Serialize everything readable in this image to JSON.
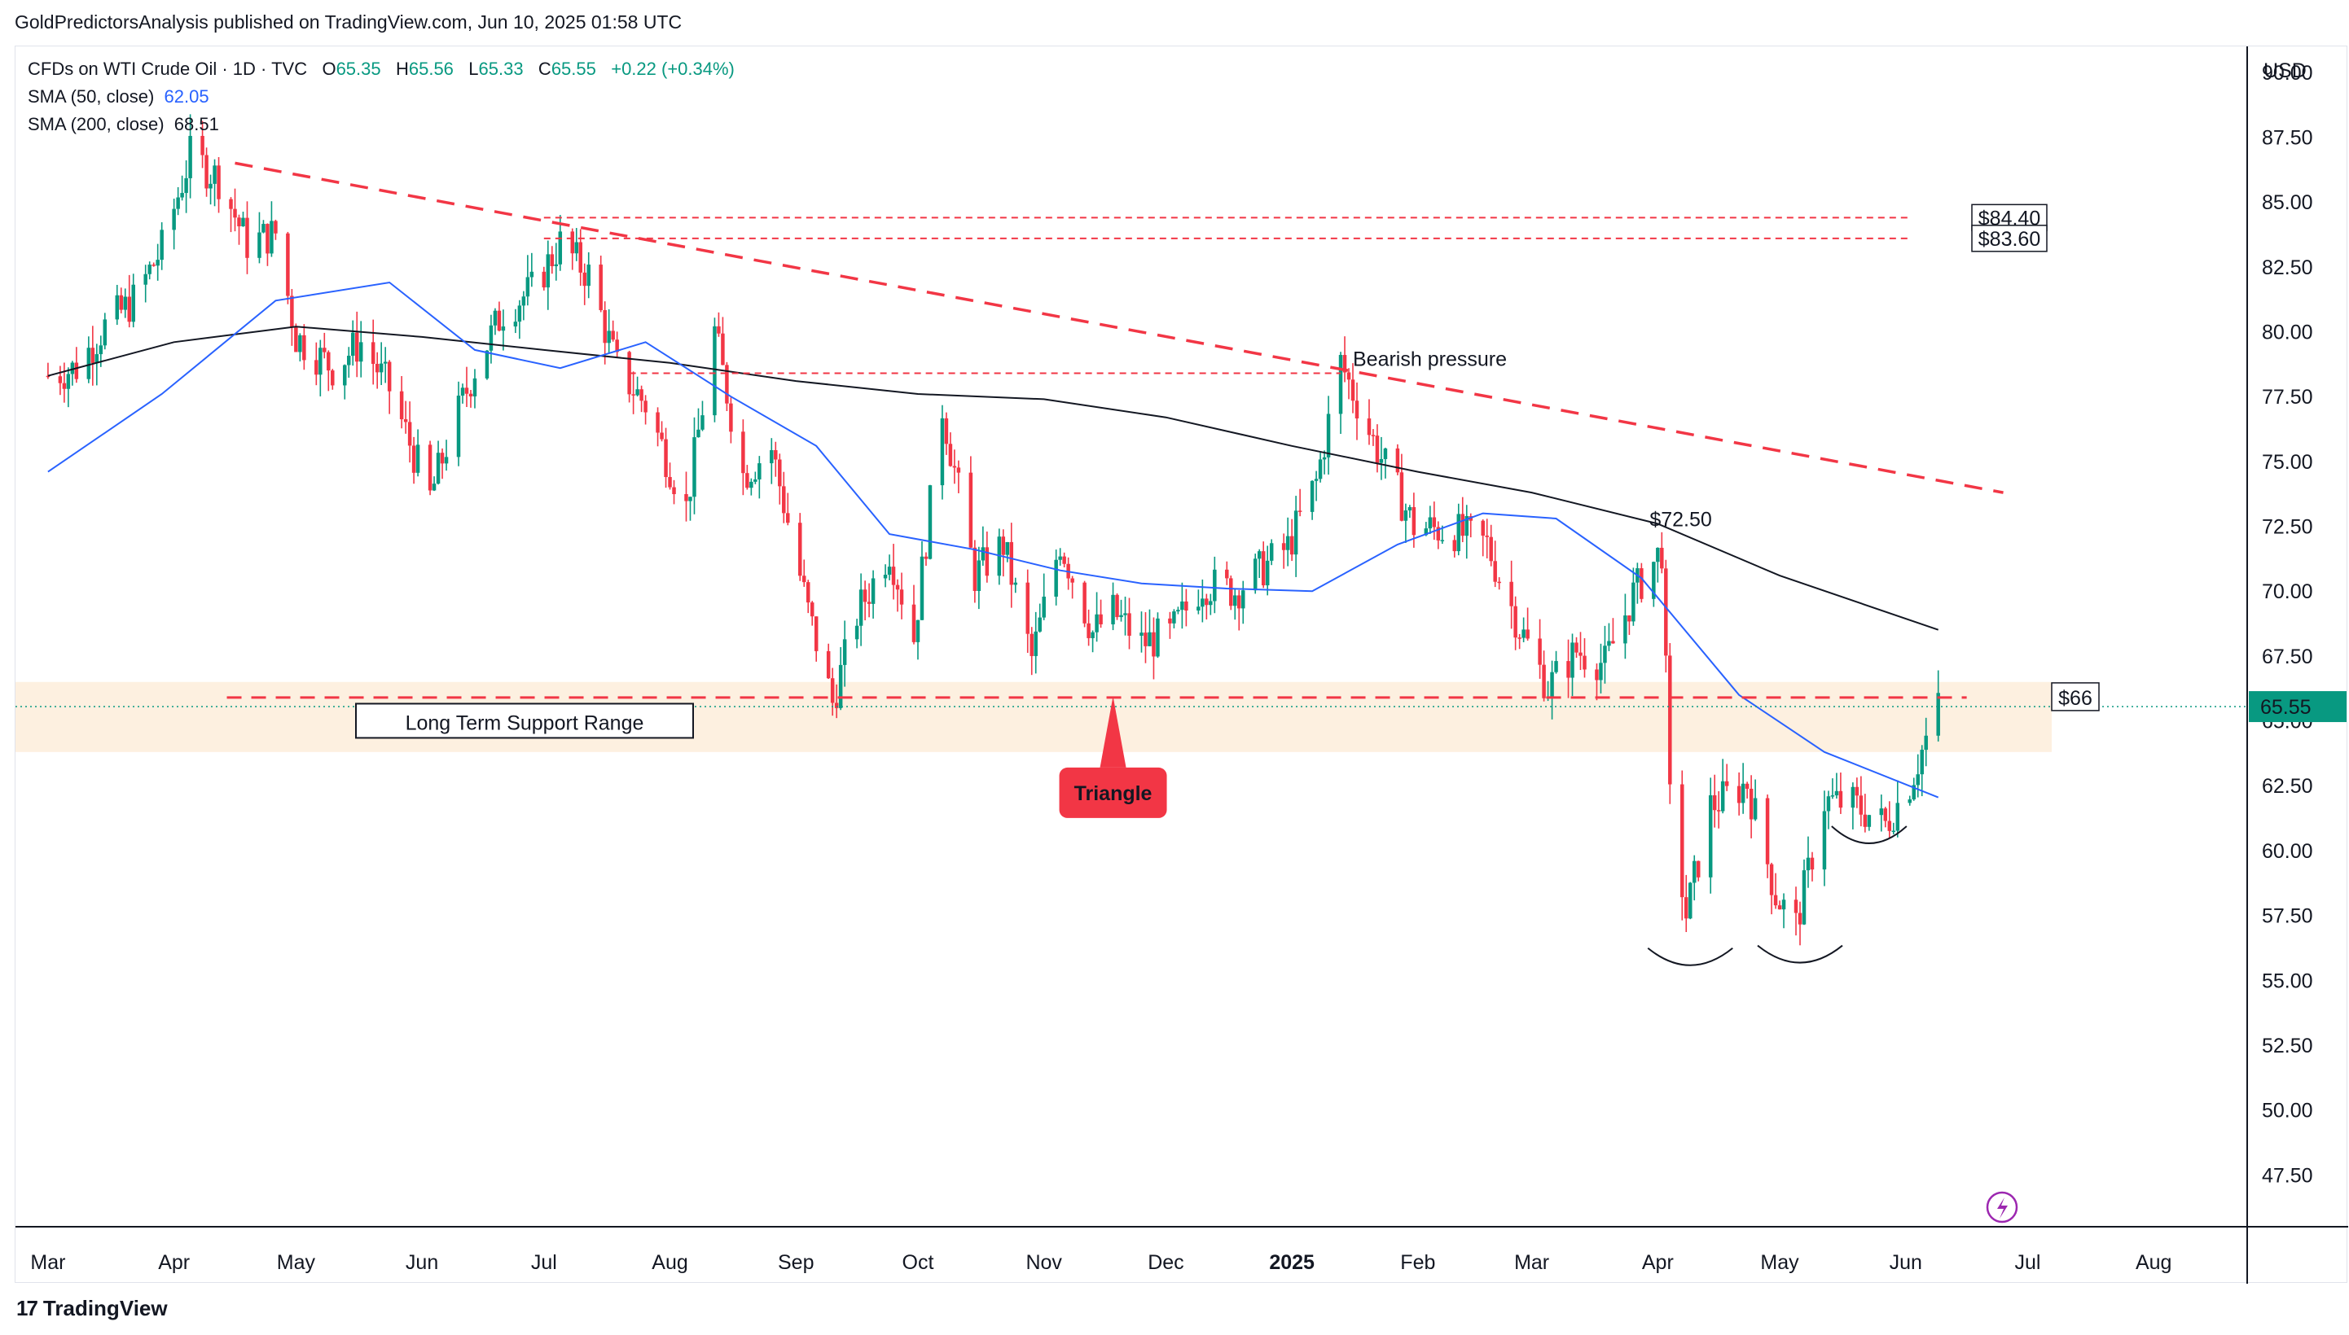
{
  "header": {
    "publisher": "GoldPredictorsAnalysis published on TradingView.com, Jun 10, 2025 01:58 UTC"
  },
  "legend": {
    "symbol": "CFDs on WTI Crude Oil · 1D · TVC",
    "ohlc": {
      "o_label": "O",
      "o": "65.35",
      "h_label": "H",
      "h": "65.56",
      "l_label": "L",
      "l": "65.33",
      "c_label": "C",
      "c": "65.55",
      "change": "+0.22 (+0.34%)"
    },
    "sma50": {
      "label": "SMA (50, close)",
      "value": "62.05"
    },
    "sma200": {
      "label": "SMA (200, close)",
      "value": "68.51"
    }
  },
  "currency": "USD",
  "footer": {
    "brand": "TradingView",
    "logo": "17"
  },
  "colors": {
    "up": "#089981",
    "down": "#f23645",
    "sma50": "#2962ff",
    "sma200": "#131722",
    "annotation_red": "#f23645",
    "support_band": "#fdf0e0"
  },
  "chart_data": {
    "type": "candlestick",
    "ylim": [
      45.5,
      91.0
    ],
    "y_ticks": [
      "90.00",
      "87.50",
      "85.00",
      "82.50",
      "80.00",
      "77.50",
      "75.00",
      "72.50",
      "70.00",
      "67.50",
      "65.00",
      "62.50",
      "60.00",
      "57.50",
      "55.00",
      "52.50",
      "50.00",
      "47.50"
    ],
    "x_months": [
      "Mar",
      "Apr",
      "May",
      "Jun",
      "Jul",
      "Aug",
      "Sep",
      "Oct",
      "Nov",
      "Dec",
      "2025",
      "Feb",
      "Mar",
      "Apr",
      "May",
      "Jun",
      "Jul",
      "Aug"
    ],
    "last_price": "65.55",
    "close_path": [
      [
        "2024-03-01",
        78.3
      ],
      [
        "2024-03-08",
        78.6
      ],
      [
        "2024-03-15",
        80.2
      ],
      [
        "2024-03-22",
        81.2
      ],
      [
        "2024-03-29",
        83.2
      ],
      [
        "2024-04-05",
        86.8
      ],
      [
        "2024-04-12",
        85.9
      ],
      [
        "2024-04-19",
        83.4
      ],
      [
        "2024-04-26",
        83.8
      ],
      [
        "2024-05-01",
        79.8
      ],
      [
        "2024-05-10",
        78.6
      ],
      [
        "2024-05-17",
        79.6
      ],
      [
        "2024-05-24",
        77.8
      ],
      [
        "2024-06-03",
        73.6
      ],
      [
        "2024-06-07",
        75.6
      ],
      [
        "2024-06-14",
        78.6
      ],
      [
        "2024-06-21",
        80.8
      ],
      [
        "2024-06-28",
        81.6
      ],
      [
        "2024-07-05",
        83.4
      ],
      [
        "2024-07-12",
        82.2
      ],
      [
        "2024-07-19",
        78.6
      ],
      [
        "2024-07-26",
        77.2
      ],
      [
        "2024-08-05",
        73.2
      ],
      [
        "2024-08-12",
        80.0
      ],
      [
        "2024-08-19",
        74.5
      ],
      [
        "2024-08-26",
        75.5
      ],
      [
        "2024-09-04",
        69.2
      ],
      [
        "2024-09-10",
        65.7
      ],
      [
        "2024-09-16",
        69.1
      ],
      [
        "2024-09-24",
        71.6
      ],
      [
        "2024-09-30",
        68.2
      ],
      [
        "2024-10-07",
        77.1
      ],
      [
        "2024-10-15",
        70.6
      ],
      [
        "2024-10-22",
        71.8
      ],
      [
        "2024-10-29",
        67.4
      ],
      [
        "2024-11-05",
        71.9
      ],
      [
        "2024-11-13",
        68.4
      ],
      [
        "2024-11-18",
        69.2
      ],
      [
        "2024-11-25",
        68.0
      ],
      [
        "2024-12-02",
        68.3
      ],
      [
        "2024-12-10",
        70.3
      ],
      [
        "2024-12-18",
        70.0
      ],
      [
        "2024-12-31",
        71.7
      ],
      [
        "2025-01-07",
        74.2
      ],
      [
        "2025-01-13",
        78.8
      ],
      [
        "2025-01-21",
        75.8
      ],
      [
        "2025-01-31",
        72.5
      ],
      [
        "2025-02-10",
        72.3
      ],
      [
        "2025-02-18",
        71.8
      ],
      [
        "2025-02-26",
        68.6
      ],
      [
        "2025-03-05",
        66.3
      ],
      [
        "2025-03-12",
        67.7
      ],
      [
        "2025-03-19",
        67.2
      ],
      [
        "2025-03-26",
        69.9
      ],
      [
        "2025-04-02",
        71.6
      ],
      [
        "2025-04-04",
        61.9
      ],
      [
        "2025-04-08",
        57.5
      ],
      [
        "2025-04-14",
        61.7
      ],
      [
        "2025-04-23",
        62.6
      ],
      [
        "2025-04-30",
        58.3
      ],
      [
        "2025-05-05",
        57.1
      ],
      [
        "2025-05-12",
        61.9
      ],
      [
        "2025-05-19",
        61.8
      ],
      [
        "2025-05-27",
        61.0
      ],
      [
        "2025-06-02",
        62.6
      ],
      [
        "2025-06-09",
        65.55
      ]
    ],
    "sma50_path": [
      [
        "2024-03-01",
        74.6
      ],
      [
        "2024-03-29",
        77.6
      ],
      [
        "2024-04-26",
        81.2
      ],
      [
        "2024-05-24",
        81.9
      ],
      [
        "2024-06-14",
        79.3
      ],
      [
        "2024-07-05",
        78.6
      ],
      [
        "2024-07-26",
        79.6
      ],
      [
        "2024-08-16",
        77.5
      ],
      [
        "2024-09-06",
        75.6
      ],
      [
        "2024-09-24",
        72.2
      ],
      [
        "2024-10-15",
        71.6
      ],
      [
        "2024-11-05",
        70.8
      ],
      [
        "2024-11-25",
        70.3
      ],
      [
        "2024-12-16",
        70.1
      ],
      [
        "2025-01-06",
        70.0
      ],
      [
        "2025-01-27",
        71.8
      ],
      [
        "2025-02-17",
        73.0
      ],
      [
        "2025-03-07",
        72.8
      ],
      [
        "2025-03-28",
        70.5
      ],
      [
        "2025-04-21",
        66.0
      ],
      [
        "2025-05-12",
        63.8
      ],
      [
        "2025-06-09",
        62.05
      ]
    ],
    "sma200_path": [
      [
        "2024-03-01",
        78.3
      ],
      [
        "2024-04-01",
        79.6
      ],
      [
        "2024-05-01",
        80.2
      ],
      [
        "2024-06-01",
        79.8
      ],
      [
        "2024-07-01",
        79.3
      ],
      [
        "2024-08-01",
        78.8
      ],
      [
        "2024-09-01",
        78.1
      ],
      [
        "2024-10-01",
        77.6
      ],
      [
        "2024-11-01",
        77.4
      ],
      [
        "2024-12-01",
        76.7
      ],
      [
        "2025-01-01",
        75.6
      ],
      [
        "2025-02-01",
        74.6
      ],
      [
        "2025-03-01",
        73.8
      ],
      [
        "2025-04-01",
        72.6
      ],
      [
        "2025-05-01",
        70.6
      ],
      [
        "2025-06-09",
        68.51
      ]
    ],
    "annotations": {
      "resistance_1": "$84.40",
      "resistance_2": "$83.60",
      "level_66": "$66",
      "level_72": "$72.50",
      "bearish": "Bearish pressure",
      "support_range": "Long Term Support Range",
      "triangle": "Triangle"
    },
    "levels": {
      "r1": 84.4,
      "r2": 83.6,
      "r3": 78.4,
      "support_mid": 65.9,
      "band_top": 66.5,
      "band_bottom": 63.8
    },
    "trendline": [
      [
        "2024-04-16",
        86.5
      ],
      [
        "2025-06-25",
        73.8
      ]
    ]
  }
}
